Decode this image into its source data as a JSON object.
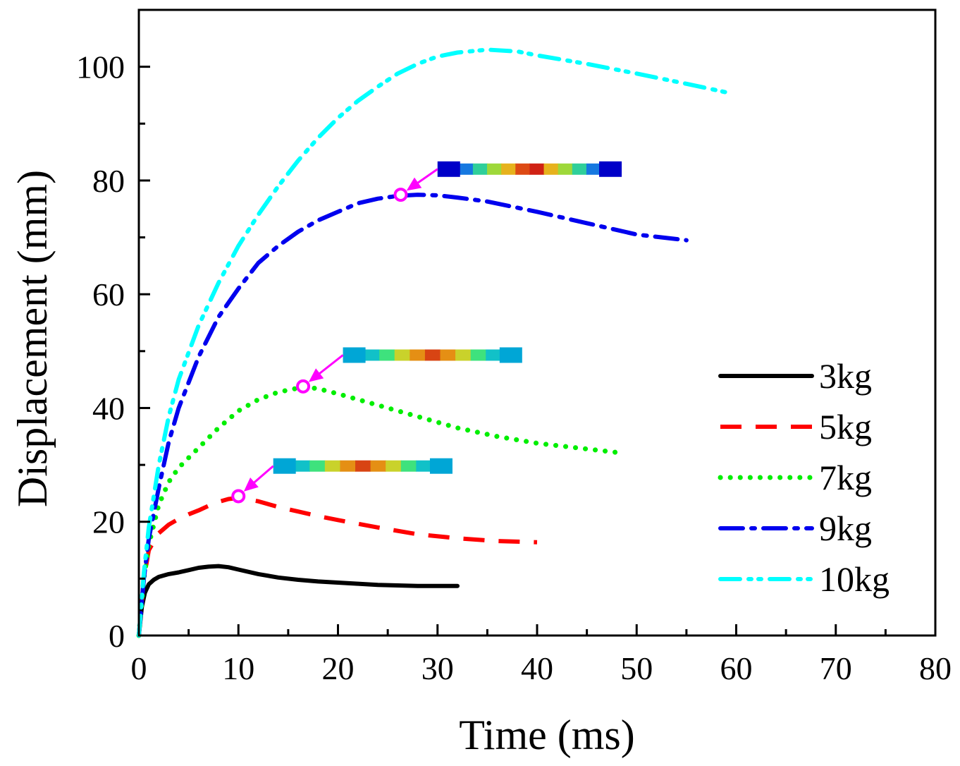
{
  "chart_data": {
    "type": "line",
    "title": "",
    "xlabel": "Time (ms)",
    "ylabel": "Displacement (mm)",
    "xlim": [
      0,
      80
    ],
    "ylim": [
      0,
      110
    ],
    "x_ticks": [
      "0",
      "10",
      "20",
      "30",
      "40",
      "50",
      "60",
      "70",
      "80"
    ],
    "y_ticks": [
      "0",
      "20",
      "40",
      "60",
      "80",
      "100"
    ],
    "grid": false,
    "legend_position": "right",
    "colors": {
      "3kg": "#000000",
      "5kg": "#ff0000",
      "7kg": "#00ee00",
      "9kg": "#0000ee",
      "10kg": "#00ffff",
      "marker": "#ff00ff"
    },
    "series": [
      {
        "name": "3kg",
        "style": "solid",
        "x": [
          0,
          0.3,
          0.6,
          1,
          1.5,
          2,
          3,
          4,
          5,
          6,
          7,
          8,
          9,
          10,
          12,
          14,
          16,
          18,
          20,
          22,
          24,
          26,
          28,
          30,
          32
        ],
        "y": [
          0,
          5,
          7.5,
          9,
          9.8,
          10.3,
          10.8,
          11.1,
          11.5,
          11.9,
          12.1,
          12.2,
          12,
          11.6,
          10.8,
          10.2,
          9.8,
          9.5,
          9.3,
          9.1,
          8.9,
          8.8,
          8.7,
          8.7,
          8.7
        ]
      },
      {
        "name": "5kg",
        "style": "dashed",
        "x": [
          0,
          0.5,
          1,
          2,
          3,
          4,
          5,
          6,
          7,
          8,
          9,
          10,
          12,
          14,
          16,
          18,
          20,
          24,
          28,
          32,
          36,
          40
        ],
        "y": [
          0,
          10,
          15,
          18,
          19.5,
          20.5,
          21.3,
          22,
          22.8,
          23.5,
          24,
          24.2,
          23.6,
          22.6,
          21.8,
          21,
          20.3,
          19,
          17.8,
          17.1,
          16.6,
          16.4
        ]
      },
      {
        "name": "7kg",
        "style": "dotted",
        "x": [
          0,
          0.5,
          1,
          2,
          3,
          4,
          6,
          8,
          10,
          12,
          14,
          16,
          17,
          18,
          20,
          22,
          24,
          26,
          28,
          32,
          36,
          40,
          44,
          48
        ],
        "y": [
          0,
          10,
          16,
          23,
          27,
          29.5,
          33,
          36.5,
          39.5,
          41.5,
          42.8,
          43.5,
          43.6,
          43.4,
          42.5,
          41.5,
          40.5,
          39.5,
          38.5,
          36.5,
          35,
          33.8,
          33,
          32.2
        ]
      },
      {
        "name": "9kg",
        "style": "dashdot",
        "x": [
          0,
          0.5,
          1,
          2,
          3,
          4,
          6,
          8,
          10,
          12,
          14,
          16,
          18,
          20,
          22,
          24,
          26,
          28,
          30,
          32,
          35,
          40,
          45,
          50,
          55
        ],
        "y": [
          0,
          10,
          17,
          26,
          34,
          40,
          49,
          56,
          61,
          65.5,
          68.5,
          71,
          73,
          74.5,
          76,
          76.8,
          77.3,
          77.5,
          77.4,
          77,
          76.3,
          74.5,
          72.5,
          70.5,
          69.5
        ]
      },
      {
        "name": "10kg",
        "style": "dashdotdot",
        "x": [
          0,
          0.5,
          1,
          2,
          3,
          4,
          6,
          8,
          10,
          12,
          14,
          16,
          18,
          20,
          22,
          24,
          26,
          28,
          30,
          32,
          35,
          38,
          40,
          45,
          50,
          55,
          59
        ],
        "y": [
          0,
          11,
          19,
          30,
          38.5,
          45,
          54.5,
          62,
          68.5,
          74,
          79,
          83.5,
          87.5,
          91,
          94,
          96.5,
          98.8,
          100.5,
          101.8,
          102.5,
          103,
          102.7,
          102,
          100.5,
          98.8,
          97,
          95.5
        ]
      }
    ],
    "markers": [
      {
        "x": 10,
        "y": 24.5
      },
      {
        "x": 16.5,
        "y": 43.8
      },
      {
        "x": 26.3,
        "y": 77.5
      }
    ],
    "insets": [
      {
        "x_start": 13.5,
        "x_end": 31.5,
        "y": 29.8,
        "end_color": "#00a6d6",
        "core": [
          "#11c1c8",
          "#3ee27d",
          "#c9d22b",
          "#e58f14",
          "#d84413",
          "#e58f14",
          "#c9d22b",
          "#3ee27d",
          "#11c1c8"
        ]
      },
      {
        "x_start": 20.5,
        "x_end": 38.5,
        "y": 49.3,
        "end_color": "#00a6d6",
        "core": [
          "#11c1c8",
          "#3ee27d",
          "#c9d22b",
          "#e58f14",
          "#d84413",
          "#e58f14",
          "#c9d22b",
          "#3ee27d",
          "#11c1c8"
        ]
      },
      {
        "x_start": 30,
        "x_end": 48.5,
        "y": 82,
        "end_color": "#0000c8",
        "core": [
          "#1678e0",
          "#2fcf9a",
          "#9ed83a",
          "#e6b21d",
          "#dd4a14",
          "#d02214",
          "#e6b21d",
          "#9ed83a",
          "#2fcf9a",
          "#1678e0"
        ]
      }
    ]
  }
}
